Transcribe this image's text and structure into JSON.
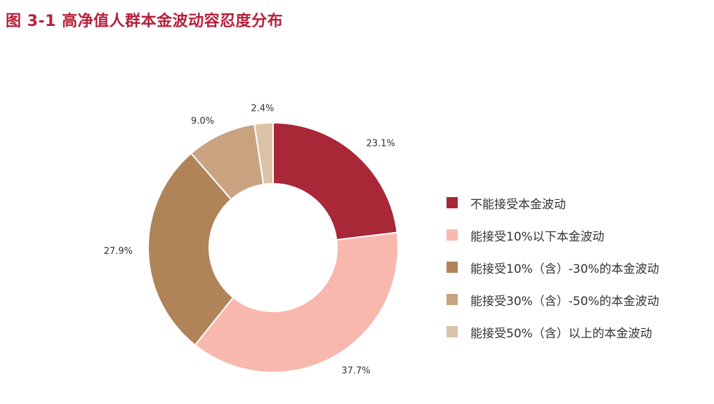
{
  "title": "图 3-1  高净值人群本金波动容忍度分布",
  "chart_data": {
    "type": "pie",
    "donut": true,
    "start_angle_deg": 0,
    "direction": "clockwise",
    "legend_position": "right",
    "slices": [
      {
        "name": "不能接受本金波动",
        "value": 23.1,
        "label": "23.1%",
        "color": "#a82837"
      },
      {
        "name": "能接受10%以下本金波动",
        "value": 37.7,
        "label": "37.7%",
        "color": "#f8b8ae"
      },
      {
        "name": "能接受10%（含）-30%的本金波动",
        "value": 27.9,
        "label": "27.9%",
        "color": "#b08358"
      },
      {
        "name": "能接受30%（含）-50%的本金波动",
        "value": 9.0,
        "label": "9.0%",
        "color": "#c9a380"
      },
      {
        "name": "能接受50%（含）以上的本金波动",
        "value": 2.4,
        "label": "2.4%",
        "color": "#dbc3a8"
      }
    ]
  }
}
